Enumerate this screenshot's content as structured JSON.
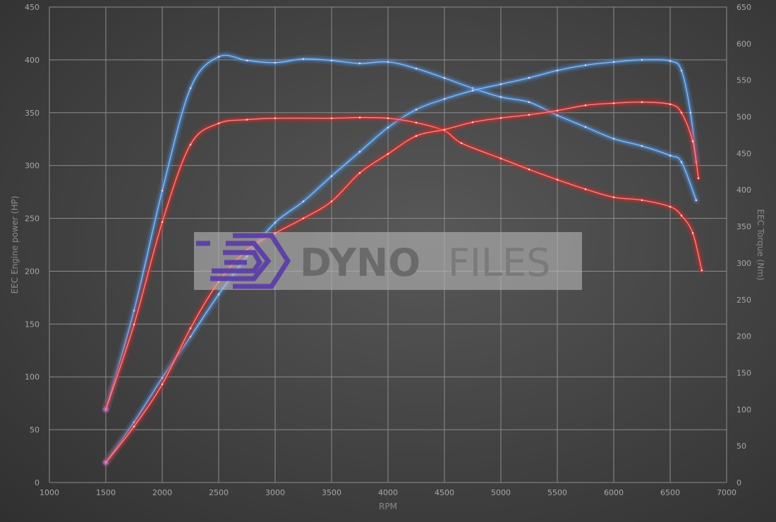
{
  "chart_data": {
    "type": "line",
    "title": "",
    "xlabel": "RPM",
    "ylabel_left": "EEC Engine power (HP)",
    "ylabel_right": "EEC Torque (Nm)",
    "xlim": [
      1000,
      7000
    ],
    "ylim_left": [
      0,
      450
    ],
    "ylim_right": [
      0,
      650
    ],
    "x_ticks": [
      1000,
      1500,
      2000,
      2500,
      3000,
      3500,
      4000,
      4500,
      5000,
      5500,
      6000,
      6500,
      7000
    ],
    "y_left_ticks": [
      0,
      50,
      100,
      150,
      200,
      250,
      300,
      350,
      400,
      450
    ],
    "y_right_ticks": [
      0,
      50,
      100,
      150,
      200,
      250,
      300,
      350,
      400,
      450,
      500,
      550,
      600,
      650
    ],
    "grid": true,
    "background": "#454545",
    "series": [
      {
        "axis": "right",
        "color": "#4a8fe0",
        "x": [
          1500,
          1750,
          2000,
          2250,
          2500,
          2750,
          3000,
          3250,
          3500,
          3750,
          4000,
          4250,
          4500,
          4750,
          5000,
          5250,
          5500,
          5750,
          6000,
          6250,
          6500,
          6600,
          6730
        ],
        "y": [
          100,
          235,
          399,
          539,
          582,
          577,
          574,
          579,
          577,
          573,
          575,
          566,
          553,
          539,
          527,
          520,
          502,
          486,
          470,
          460,
          447,
          438,
          386
        ]
      },
      {
        "axis": "left",
        "color": "#4a8fe0",
        "x": [
          1500,
          1750,
          2000,
          2250,
          2500,
          2750,
          3000,
          3250,
          3500,
          3750,
          4000,
          4250,
          4500,
          4750,
          5000,
          5250,
          5500,
          5750,
          6000,
          6250,
          6500,
          6600,
          6680,
          6730
        ],
        "y": [
          19,
          57,
          99,
          138,
          178,
          214,
          246,
          266,
          290,
          313,
          336,
          353,
          363,
          371,
          377,
          383,
          390,
          395,
          398,
          400,
          399,
          390,
          350,
          303
        ]
      },
      {
        "axis": "right",
        "color": "#e02828",
        "x": [
          1500,
          1750,
          2000,
          2250,
          2500,
          2750,
          3000,
          3500,
          3750,
          4000,
          4250,
          4500,
          4650,
          5000,
          5250,
          5500,
          5750,
          6000,
          6250,
          6500,
          6600,
          6700,
          6780
        ],
        "y": [
          100,
          216,
          356,
          462,
          491,
          496,
          498,
          498,
          499,
          498,
          492,
          481,
          464,
          443,
          428,
          414,
          401,
          390,
          386,
          377,
          365,
          341,
          290
        ]
      },
      {
        "axis": "left",
        "color": "#e02828",
        "x": [
          1500,
          1750,
          2000,
          2250,
          2500,
          2750,
          3000,
          3250,
          3500,
          3750,
          4000,
          4250,
          4500,
          4750,
          5000,
          5250,
          5500,
          5750,
          6000,
          6250,
          6500,
          6600,
          6700,
          6750
        ],
        "y": [
          19,
          53,
          93,
          146,
          190,
          220,
          236,
          250,
          266,
          293,
          311,
          328,
          334,
          341,
          345,
          348,
          352,
          357,
          359,
          360,
          358,
          350,
          323,
          288
        ]
      }
    ]
  },
  "watermark": {
    "brand": "DYNOFILES",
    "part1": "DYNO",
    "part2": "FILES",
    "logo_color": "#5a3aa8"
  }
}
